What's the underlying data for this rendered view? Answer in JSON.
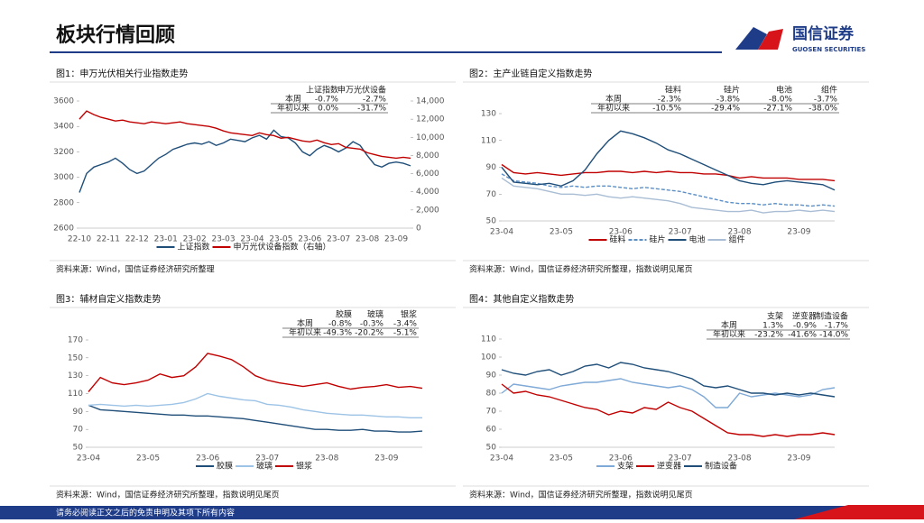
{
  "header": {
    "title": "板块行情回顾",
    "logo": "国信证券",
    "logo_en": "GUOSEN SECURITIES"
  },
  "footer": "请务必阅读正文之后的免责申明及其项下所有内容",
  "chart_data": [
    {
      "type": "line",
      "title": "图1：申万光伏相关行业指数走势",
      "source": "资料来源：Wind，国信证券经济研究所整理",
      "table": {
        "columns": [
          "上证指数",
          "申万光伏设备"
        ],
        "rows": [
          {
            "label": "本周",
            "cells": [
              "-0.7%",
              "-2.7%"
            ]
          },
          {
            "label": "年初以来",
            "cells": [
              "0.0%",
              "-31.7%"
            ]
          }
        ]
      },
      "categories": [
        "22-10",
        null,
        null,
        null,
        "22-11",
        null,
        null,
        null,
        "22-12",
        null,
        null,
        null,
        "23-01",
        null,
        null,
        null,
        "23-02",
        null,
        null,
        null,
        "23-03",
        null,
        null,
        null,
        "23-04",
        null,
        null,
        null,
        "23-05",
        null,
        null,
        null,
        "23-06",
        null,
        null,
        null,
        "23-07",
        null,
        null,
        null,
        "23-08",
        null,
        null,
        null,
        "23-09",
        null,
        null
      ],
      "ylim": [
        2600,
        3600
      ],
      "yticks": [
        2600,
        2800,
        3000,
        3200,
        3400,
        3600
      ],
      "y2lim": [
        0,
        14000
      ],
      "y2ticks": [
        0,
        {
          "value": 2000,
          "label": "2,000"
        },
        {
          "value": 4000,
          "label": "4,000"
        },
        {
          "value": 6000,
          "label": "6,000"
        },
        {
          "value": 8000,
          "label": "8,000"
        },
        {
          "value": 10000,
          "label": "10,000"
        },
        {
          "value": 12000,
          "label": "12,000"
        },
        {
          "value": 14000,
          "label": "14,000"
        }
      ],
      "series": [
        {
          "name": "上证指数",
          "color": "#1f4e79",
          "values": [
            2880,
            3030,
            3080,
            3100,
            3120,
            3150,
            3110,
            3060,
            3030,
            3050,
            3100,
            3150,
            3180,
            3220,
            3240,
            3260,
            3270,
            3260,
            3280,
            3250,
            3270,
            3300,
            3290,
            3280,
            3310,
            3330,
            3300,
            3370,
            3320,
            3310,
            3270,
            3200,
            3170,
            3220,
            3250,
            3230,
            3200,
            3230,
            3280,
            3250,
            3170,
            3100,
            3080,
            3110,
            3120,
            3110,
            3090
          ]
        },
        {
          "name": "申万光伏设备指数（右轴）",
          "color": "#c00000",
          "axis": "y2",
          "values": [
            12000,
            12900,
            12500,
            12200,
            12000,
            11800,
            11900,
            11700,
            11600,
            11500,
            11700,
            11600,
            11500,
            11600,
            11700,
            11500,
            11400,
            11300,
            11200,
            11000,
            10700,
            10500,
            10400,
            10300,
            10200,
            10500,
            10300,
            10200,
            9900,
            10000,
            9800,
            9600,
            9500,
            9700,
            9400,
            9200,
            9300,
            8900,
            8800,
            8700,
            8300,
            8100,
            7900,
            7800,
            7700,
            7800,
            7700
          ]
        }
      ]
    },
    {
      "type": "line",
      "title": "图2：主产业链自定义指数走势",
      "source": "资料来源：Wind，国信证券经济研究所整理，指数说明见尾页",
      "table": {
        "columns": [
          "硅料",
          "硅片",
          "电池",
          "组件"
        ],
        "rows": [
          {
            "label": "本周",
            "cells": [
              "-2.3%",
              "-3.8%",
              "-8.0%",
              "-3.7%"
            ]
          },
          {
            "label": "年初以来",
            "cells": [
              "-10.5%",
              "-29.4%",
              "-27.1%",
              "-38.0%"
            ]
          }
        ]
      },
      "categories": [
        "23-04",
        null,
        null,
        null,
        null,
        "23-05",
        null,
        null,
        null,
        null,
        "23-06",
        null,
        null,
        null,
        null,
        "23-07",
        null,
        null,
        null,
        null,
        "23-08",
        null,
        null,
        null,
        null,
        "23-09",
        null,
        null,
        null
      ],
      "ylim": [
        50,
        130
      ],
      "yticks": [
        50,
        70,
        90,
        110,
        130
      ],
      "series": [
        {
          "name": "硅料",
          "color": "#c00000",
          "values": [
            92,
            86,
            85,
            86,
            85,
            84,
            85,
            86,
            86,
            87,
            87,
            86,
            87,
            86,
            87,
            86,
            86,
            85,
            85,
            84,
            82,
            83,
            82,
            82,
            82,
            81,
            81,
            81,
            80
          ]
        },
        {
          "name": "硅片",
          "color": "#5b8fc7",
          "dashed": true,
          "values": [
            85,
            80,
            79,
            78,
            76,
            75,
            76,
            75,
            76,
            76,
            75,
            74,
            75,
            74,
            73,
            72,
            70,
            68,
            66,
            64,
            63,
            63,
            62,
            63,
            62,
            62,
            61,
            62,
            61
          ]
        },
        {
          "name": "电池",
          "color": "#1f4e79",
          "values": [
            90,
            79,
            78,
            77,
            78,
            76,
            80,
            88,
            100,
            110,
            117,
            115,
            112,
            108,
            103,
            100,
            96,
            92,
            88,
            84,
            80,
            78,
            77,
            79,
            80,
            79,
            78,
            77,
            73
          ]
        },
        {
          "name": "组件",
          "color": "#a9bdd4",
          "values": [
            82,
            76,
            75,
            74,
            72,
            70,
            70,
            69,
            70,
            68,
            67,
            68,
            67,
            66,
            65,
            63,
            60,
            59,
            58,
            57,
            57,
            58,
            56,
            57,
            57,
            58,
            57,
            58,
            57
          ]
        }
      ]
    },
    {
      "type": "line",
      "title": "图3：辅材自定义指数走势",
      "source": "资料来源：Wind，国信证券经济研究所整理，指数说明见尾页",
      "table": {
        "columns": [
          "胶膜",
          "玻璃",
          "银浆"
        ],
        "rows": [
          {
            "label": "本周",
            "cells": [
              "-0.8%",
              "-0.3%",
              "-3.4%"
            ]
          },
          {
            "label": "年初以来",
            "cells": [
              "-49.3%",
              "-20.2%",
              "-5.1%"
            ]
          }
        ]
      },
      "categories": [
        "23-04",
        null,
        null,
        null,
        null,
        "23-05",
        null,
        null,
        null,
        null,
        "23-06",
        null,
        null,
        null,
        null,
        "23-07",
        null,
        null,
        null,
        null,
        "23-08",
        null,
        null,
        null,
        null,
        "23-09",
        null,
        null,
        null
      ],
      "ylim": [
        50,
        170
      ],
      "yticks": [
        50,
        70,
        90,
        110,
        130,
        150,
        170
      ],
      "series": [
        {
          "name": "胶膜",
          "color": "#1f4e79",
          "values": [
            97,
            92,
            91,
            90,
            89,
            88,
            87,
            86,
            86,
            85,
            85,
            84,
            83,
            82,
            80,
            78,
            76,
            74,
            72,
            70,
            70,
            69,
            69,
            70,
            68,
            68,
            67,
            67,
            68
          ]
        },
        {
          "name": "玻璃",
          "color": "#9dc3e6",
          "values": [
            97,
            98,
            97,
            96,
            97,
            96,
            97,
            98,
            100,
            104,
            110,
            107,
            105,
            103,
            102,
            98,
            97,
            95,
            92,
            90,
            88,
            87,
            86,
            86,
            85,
            84,
            84,
            83,
            83
          ]
        },
        {
          "name": "银浆",
          "color": "#c00000",
          "values": [
            112,
            128,
            122,
            120,
            122,
            125,
            132,
            128,
            130,
            140,
            155,
            152,
            148,
            140,
            130,
            125,
            122,
            120,
            118,
            120,
            122,
            118,
            115,
            117,
            118,
            120,
            117,
            118,
            116
          ]
        }
      ]
    },
    {
      "type": "line",
      "title": "图4：其他自定义指数走势",
      "source": "资料来源：Wind，国信证券经济研究所整理，指数说明见尾页",
      "table": {
        "columns": [
          "支架",
          "逆变器",
          "制造设备"
        ],
        "rows": [
          {
            "label": "本周",
            "cells": [
              "1.3%",
              "-0.9%",
              "-1.7%"
            ]
          },
          {
            "label": "年初以来",
            "cells": [
              "-23.2%",
              "-41.6%",
              "-14.0%"
            ]
          }
        ]
      },
      "categories": [
        "23-04",
        null,
        null,
        null,
        null,
        "23-05",
        null,
        null,
        null,
        null,
        "23-06",
        null,
        null,
        null,
        null,
        "23-07",
        null,
        null,
        null,
        null,
        "23-08",
        null,
        null,
        null,
        null,
        "23-09",
        null,
        null,
        null
      ],
      "ylim": [
        50,
        110
      ],
      "yticks": [
        50,
        60,
        70,
        80,
        90,
        100,
        110
      ],
      "series": [
        {
          "name": "支架",
          "color": "#7fa9d6",
          "values": [
            80,
            85,
            84,
            83,
            82,
            84,
            85,
            86,
            86,
            87,
            88,
            86,
            85,
            84,
            83,
            84,
            82,
            78,
            72,
            72,
            80,
            78,
            79,
            80,
            79,
            78,
            79,
            82,
            83
          ]
        },
        {
          "name": "逆变器",
          "color": "#c00000",
          "values": [
            85,
            80,
            81,
            79,
            78,
            76,
            74,
            72,
            71,
            68,
            70,
            69,
            72,
            71,
            75,
            72,
            70,
            66,
            62,
            58,
            57,
            57,
            56,
            57,
            56,
            57,
            57,
            58,
            57
          ]
        },
        {
          "name": "制造设备",
          "color": "#1f4e79",
          "values": [
            93,
            91,
            90,
            92,
            93,
            90,
            92,
            95,
            96,
            94,
            97,
            96,
            94,
            93,
            92,
            90,
            88,
            84,
            83,
            84,
            82,
            80,
            80,
            79,
            80,
            79,
            80,
            79,
            78
          ]
        }
      ]
    }
  ]
}
